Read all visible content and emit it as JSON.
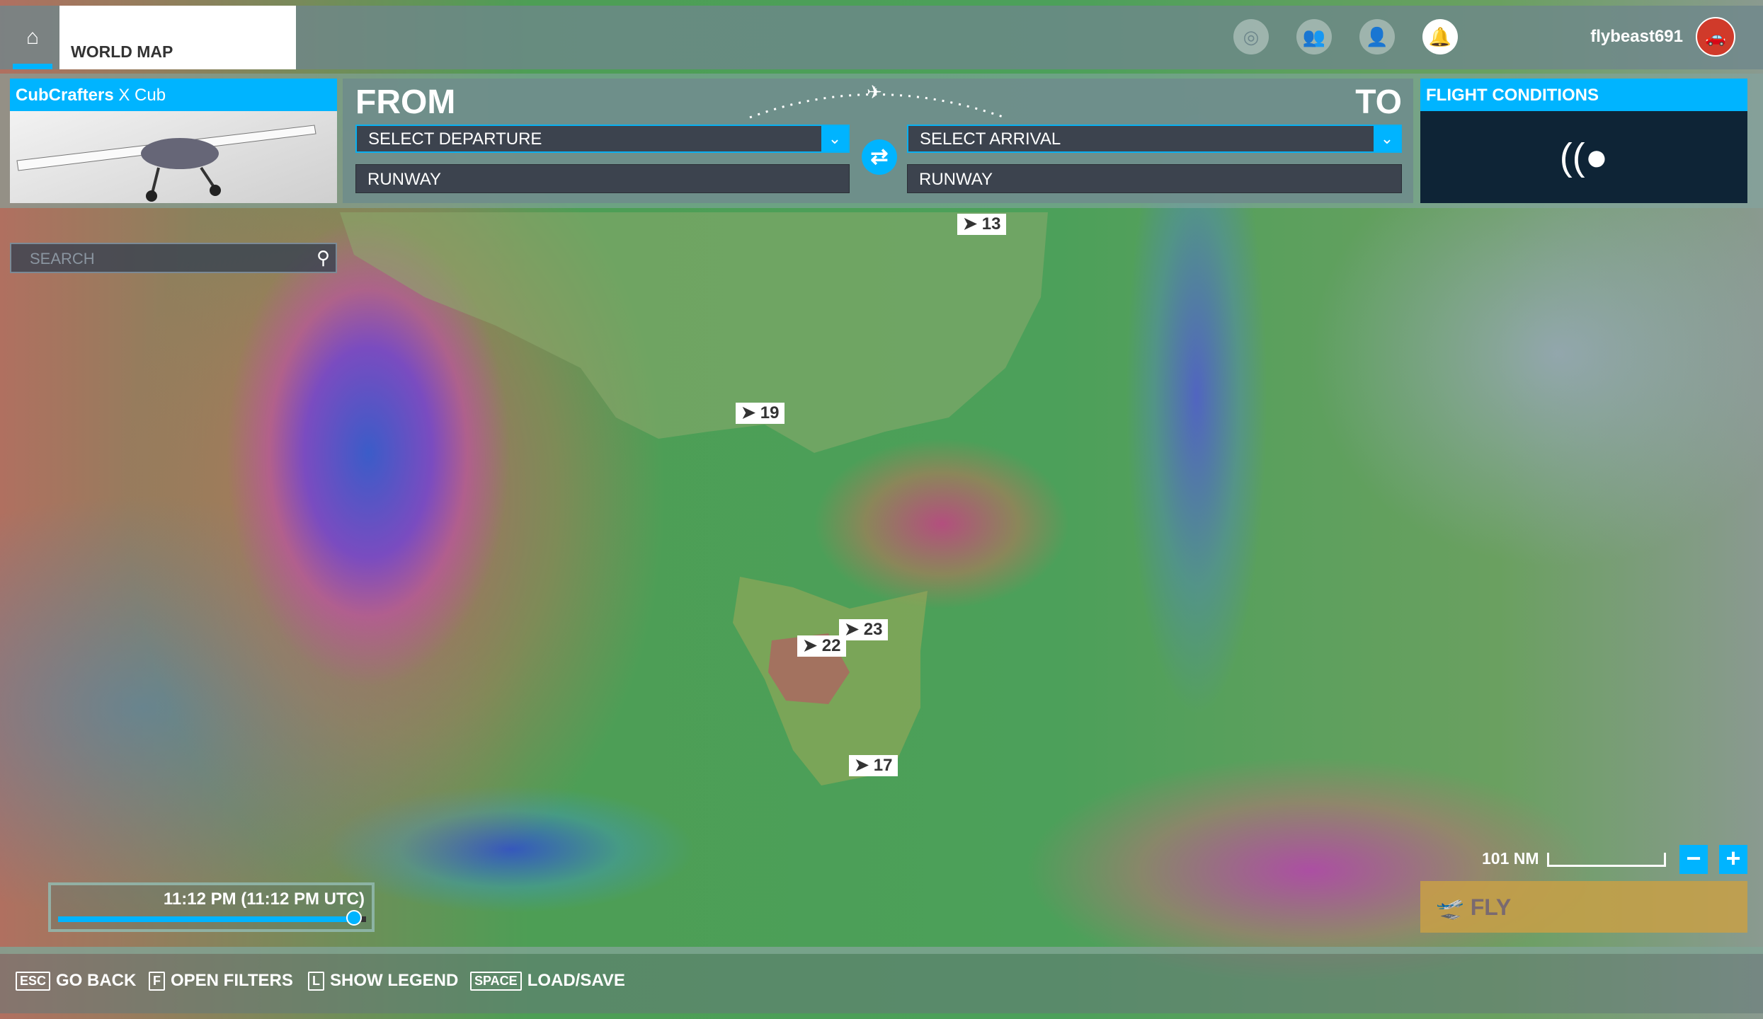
{
  "header": {
    "tab": "WORLD MAP",
    "username": "flybeast691",
    "icons": [
      "home-icon",
      "activity-icon",
      "friends-icon",
      "profile-icon",
      "notifications-icon"
    ]
  },
  "aircraft": {
    "brand": "CubCrafters",
    "model": "X Cub"
  },
  "route": {
    "from_label": "FROM",
    "to_label": "TO",
    "departure_placeholder": "SELECT DEPARTURE",
    "arrival_placeholder": "SELECT ARRIVAL",
    "departure_runway": "RUNWAY",
    "arrival_runway": "RUNWAY"
  },
  "conditions": {
    "title": "FLIGHT CONDITIONS"
  },
  "search": {
    "placeholder": "SEARCH"
  },
  "markers": [
    "13",
    "19",
    "23",
    "22",
    "17"
  ],
  "map": {
    "scale": "101 NM"
  },
  "time": {
    "label": "11:12 PM (11:12 PM UTC)",
    "progress_percent": 96
  },
  "fly": {
    "label": "FLY"
  },
  "hints": [
    {
      "key": "ESC",
      "label": "GO BACK"
    },
    {
      "key": "F",
      "label": "OPEN FILTERS"
    },
    {
      "key": "L",
      "label": "SHOW LEGEND"
    },
    {
      "key": "SPACE",
      "label": "LOAD/SAVE"
    }
  ],
  "colors": {
    "accent": "#00b4ff",
    "avatar": "#d03a2a"
  }
}
